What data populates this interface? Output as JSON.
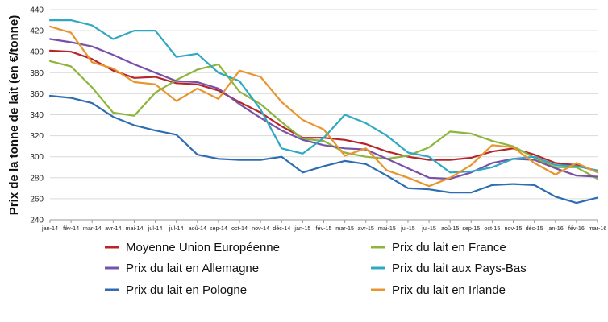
{
  "chart_data": {
    "type": "line",
    "title": "",
    "xlabel": "",
    "ylabel": "Prix de la tonne de lait (en €/tonne)",
    "ylim": [
      240,
      440
    ],
    "yticks": [
      240,
      260,
      280,
      300,
      320,
      340,
      360,
      380,
      400,
      420,
      440
    ],
    "grid": "horizontal",
    "legend_position": "bottom",
    "categories": [
      "jan-14",
      "fév-14",
      "mar-14",
      "avr-14",
      "mai-14",
      "jul-14",
      "jul-14",
      "aoû-14",
      "sep-14",
      "oct-14",
      "nov-14",
      "déc-14",
      "jan-15",
      "fév-15",
      "mar-15",
      "avr-15",
      "mai-15",
      "jul-15",
      "jul-15",
      "aoû-15",
      "sep-15",
      "oct-15",
      "nov-15",
      "déc-15",
      "jan-16",
      "fév-16",
      "mar-16"
    ],
    "series": [
      {
        "name": "Moyenne Union Européenne",
        "color": "#b5262c",
        "values": [
          401,
          400,
          393,
          382,
          375,
          376,
          370,
          369,
          363,
          352,
          342,
          329,
          318,
          318,
          316,
          312,
          305,
          300,
          297,
          297,
          299,
          305,
          308,
          302,
          294,
          292,
          286
        ]
      },
      {
        "name": "Prix du lait en France",
        "color": "#8db53c",
        "values": [
          391,
          386,
          366,
          342,
          339,
          361,
          373,
          383,
          388,
          362,
          350,
          333,
          317,
          315,
          304,
          300,
          298,
          301,
          309,
          324,
          322,
          315,
          310,
          299,
          290,
          290,
          279
        ]
      },
      {
        "name": "Prix du lait en Allemagne",
        "color": "#7750a8",
        "values": [
          412,
          409,
          405,
          397,
          388,
          380,
          372,
          371,
          365,
          350,
          337,
          325,
          316,
          311,
          308,
          307,
          298,
          289,
          280,
          279,
          285,
          294,
          298,
          297,
          289,
          282,
          281
        ]
      },
      {
        "name": "Prix du lait aux Pays-Bas",
        "color": "#2fa8c4",
        "values": [
          430,
          430,
          425,
          412,
          420,
          420,
          395,
          398,
          380,
          372,
          345,
          308,
          303,
          318,
          340,
          332,
          320,
          304,
          300,
          285,
          286,
          290,
          298,
          300,
          292,
          291,
          287
        ]
      },
      {
        "name": "Prix du lait en Pologne",
        "color": "#2e6db3",
        "values": [
          358,
          356,
          351,
          338,
          330,
          325,
          321,
          302,
          298,
          297,
          297,
          300,
          285,
          291,
          296,
          293,
          282,
          270,
          269,
          266,
          266,
          273,
          274,
          273,
          262,
          256,
          261
        ]
      },
      {
        "name": "Prix du lait en Irlande",
        "color": "#e8952e",
        "values": [
          424,
          418,
          390,
          384,
          371,
          369,
          353,
          365,
          355,
          382,
          376,
          352,
          335,
          326,
          301,
          308,
          287,
          280,
          272,
          280,
          292,
          311,
          309,
          294,
          283,
          294,
          285
        ]
      }
    ]
  }
}
